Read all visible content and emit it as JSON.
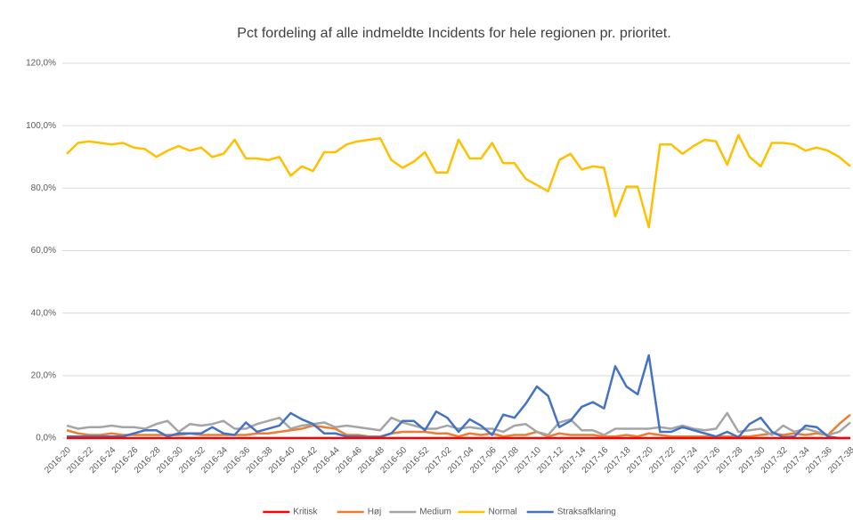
{
  "chart_data": {
    "type": "line",
    "title": "Pct fordeling af alle indmeldte Incidents for hele regionen pr. prioritet.",
    "categories": [
      "2016-20",
      null,
      "2016-22",
      null,
      "2016-24",
      null,
      "2016-26",
      null,
      "2016-28",
      null,
      "2016-30",
      null,
      "2016-32",
      null,
      "2016-34",
      null,
      "2016-36",
      null,
      "2016-38",
      null,
      "2016-40",
      null,
      "2016-42",
      null,
      "2016-44",
      null,
      "2016-46",
      null,
      "2016-48",
      null,
      "2016-50",
      null,
      "2016-52",
      null,
      "2017-02",
      null,
      "2017-04",
      null,
      "2017-06",
      null,
      "2017-08",
      null,
      "2017-10",
      null,
      "2017-12",
      null,
      "2017-14",
      null,
      "2017-16",
      null,
      "2017-18",
      null,
      "2017-20",
      null,
      "2017-22",
      null,
      "2017-24",
      null,
      "2017-26",
      null,
      "2017-28",
      null,
      "2017-30",
      null,
      "2017-32",
      null,
      "2017-34",
      null,
      "2017-36",
      null,
      "2017-38"
    ],
    "series": [
      {
        "name": "Kritisk",
        "color": "#ff0000",
        "values": [
          0,
          0,
          0,
          0,
          0,
          0,
          0,
          0,
          0,
          0,
          0,
          0,
          0,
          0,
          0,
          0,
          0,
          0,
          0,
          0,
          0,
          0,
          0,
          0,
          0,
          0,
          0,
          0,
          0,
          0,
          0,
          0,
          0,
          0,
          0,
          0,
          0,
          0,
          0,
          0,
          0,
          0,
          0,
          0,
          0,
          0,
          0,
          0,
          0,
          0,
          0,
          0,
          0,
          0,
          0,
          0,
          0,
          0,
          0,
          0,
          0,
          0,
          0,
          0,
          0,
          0,
          0,
          0,
          0,
          0,
          0
        ]
      },
      {
        "name": "Høj",
        "color": "#ed7d31",
        "values": [
          2.5,
          1.5,
          1,
          1,
          1.5,
          1,
          1,
          1,
          1,
          1,
          1,
          1.5,
          1,
          1,
          1,
          1,
          1,
          1.5,
          1.5,
          2,
          2.5,
          3,
          4,
          3.5,
          3,
          1,
          1,
          0.5,
          0.5,
          1.5,
          2,
          2,
          2,
          1.5,
          1.5,
          0.5,
          1.5,
          1,
          1.5,
          0.5,
          1,
          1,
          2,
          0.5,
          1.5,
          1,
          1,
          1,
          0.5,
          0.5,
          1,
          0.5,
          1.5,
          1,
          0.5,
          0.5,
          0.5,
          0.5,
          0.5,
          0.5,
          0.5,
          0.5,
          1,
          1.5,
          1,
          1.5,
          1,
          1.5,
          1,
          4.5,
          7.5
        ]
      },
      {
        "name": "Medium",
        "color": "#a5a5a5",
        "values": [
          4,
          3,
          3.5,
          3.5,
          4,
          3.5,
          3.5,
          3,
          4.5,
          5.5,
          2,
          4.5,
          4,
          4.5,
          5.5,
          3,
          3,
          4.5,
          5.5,
          6.5,
          3,
          4,
          4.5,
          5,
          3.5,
          4,
          3.5,
          3,
          2.5,
          6.5,
          5,
          4,
          3,
          3,
          4,
          3,
          3.5,
          3,
          3,
          2,
          4,
          4.5,
          2,
          1,
          5,
          6,
          2.5,
          2.5,
          1,
          3,
          3,
          3,
          3,
          3.5,
          3,
          4,
          3,
          2.5,
          3,
          8,
          2,
          2.5,
          3,
          1,
          4,
          2,
          3,
          2,
          1,
          2,
          5
        ]
      },
      {
        "name": "Normal",
        "color": "#ffc000",
        "values": [
          91,
          94.5,
          95,
          94.5,
          94,
          94.5,
          93,
          92.5,
          90,
          92,
          93.5,
          92,
          93,
          90,
          91,
          95.5,
          89.5,
          89.5,
          89,
          90,
          84,
          87,
          85.5,
          91.5,
          91.5,
          94,
          95,
          95.5,
          96,
          89,
          86.5,
          88.5,
          91.5,
          85,
          85,
          95.5,
          89.5,
          89.5,
          94.5,
          88,
          88,
          83,
          81,
          79,
          89,
          91,
          86,
          87,
          86.5,
          71,
          80.5,
          80.5,
          67.5,
          94,
          94,
          91,
          93.5,
          95.5,
          95,
          87.5,
          97,
          90,
          87,
          94.5,
          94.5,
          94,
          92,
          93,
          92,
          90,
          87
        ]
      },
      {
        "name": "Straksafklaring",
        "color": "#4472c4",
        "values": [
          0.5,
          0.5,
          0.5,
          0.5,
          0.5,
          0.5,
          1.5,
          2.5,
          2.5,
          0.5,
          1.5,
          1.5,
          1.5,
          3.5,
          1.5,
          1,
          5,
          2,
          3,
          4,
          8,
          6,
          4.5,
          1.5,
          1.5,
          0.5,
          0.5,
          0.3,
          0.3,
          1.5,
          5.5,
          5.5,
          2.5,
          8.5,
          6.5,
          2,
          6,
          4,
          1,
          7.5,
          6.5,
          11,
          16.5,
          13.5,
          3.5,
          5.5,
          10,
          11.5,
          9.5,
          23,
          16.5,
          14,
          26.5,
          2,
          2,
          3.5,
          2.5,
          1.5,
          0.5,
          2,
          0.3,
          4.5,
          6.5,
          2,
          0.3,
          0.5,
          4,
          3.5,
          0.5,
          0,
          0
        ]
      }
    ],
    "ylim": [
      0,
      120
    ],
    "yticks": [
      {
        "value": 0,
        "label": "0,0%"
      },
      {
        "value": 20,
        "label": "20,0%"
      },
      {
        "value": 40,
        "label": "40,0%"
      },
      {
        "value": 60,
        "label": "60,0%"
      },
      {
        "value": 80,
        "label": "80,0%"
      },
      {
        "value": 100,
        "label": "100,0%"
      },
      {
        "value": 120,
        "label": "120,0%"
      }
    ],
    "grid": true,
    "legend": "bottom"
  }
}
